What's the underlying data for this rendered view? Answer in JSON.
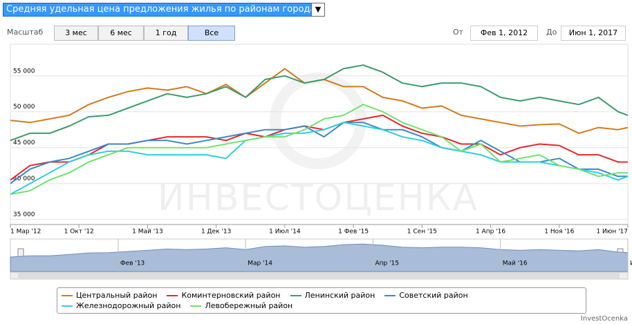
{
  "header": {
    "title": "Средняя удельная цена предложения жилья по районам города"
  },
  "controls": {
    "zoom_label": "Масштаб",
    "buttons": [
      "3 мес",
      "6 мес",
      "1 год",
      "Все"
    ],
    "selected": "Все",
    "from_label": "От",
    "from": "Фев 1, 2012",
    "to_label": "До",
    "to": "Июн 1, 2017"
  },
  "chart_data": {
    "type": "line",
    "watermark": "ИНВЕСТОЦЕНКА",
    "credit": "InvestOcenka",
    "grid": true,
    "x": [
      "2012-03",
      "2012-05",
      "2012-07",
      "2012-09",
      "2012-11",
      "2013-01",
      "2013-03",
      "2013-05",
      "2013-07",
      "2013-09",
      "2013-11",
      "2014-01",
      "2014-03",
      "2014-05",
      "2014-07",
      "2014-09",
      "2014-11",
      "2015-01",
      "2015-03",
      "2015-05",
      "2015-07",
      "2015-09",
      "2015-11",
      "2016-01",
      "2016-03",
      "2016-05",
      "2016-07",
      "2016-09",
      "2016-11",
      "2017-01",
      "2017-03",
      "2017-05",
      "2017-06"
    ],
    "xlim": [
      "2012-03",
      "2017-06"
    ],
    "xticks": [
      {
        "value": "2012-03",
        "label": "1 Мар '12"
      },
      {
        "value": "2012-10",
        "label": "1 Окт '12"
      },
      {
        "value": "2013-05",
        "label": "1 Май '13"
      },
      {
        "value": "2013-12",
        "label": "1 Дек '13"
      },
      {
        "value": "2014-07",
        "label": "1 Июл '14"
      },
      {
        "value": "2015-02",
        "label": "1 Фев '15"
      },
      {
        "value": "2015-09",
        "label": "1 Сен '15"
      },
      {
        "value": "2016-04",
        "label": "1 Апр '16"
      },
      {
        "value": "2016-11",
        "label": "1 Ноя '16"
      },
      {
        "value": "2017-06",
        "label": "1 Июн '17"
      }
    ],
    "ylim": [
      34300,
      59400
    ],
    "yticks": [
      {
        "value": 35000,
        "label": "35 000"
      },
      {
        "value": 40000,
        "label": "40 000"
      },
      {
        "value": 45000,
        "label": "45 000"
      },
      {
        "value": 50000,
        "label": "50 000"
      },
      {
        "value": 55000,
        "label": "55 000"
      }
    ],
    "navigator": {
      "labels": [
        {
          "value": "2013-02",
          "label": "Фев '13"
        },
        {
          "value": "2014-03",
          "label": "Мар '14"
        },
        {
          "value": "2015-04",
          "label": "Апр '15"
        },
        {
          "value": "2016-05",
          "label": "Май '16"
        },
        {
          "value": "2017-06",
          "label": "Ию"
        }
      ]
    },
    "series": [
      {
        "name": "Центральный район",
        "color": "#d07a1d",
        "values": [
          48800,
          48500,
          49000,
          49500,
          51000,
          52000,
          52800,
          53300,
          53000,
          53500,
          52500,
          53800,
          52000,
          54000,
          56000,
          54000,
          54500,
          53500,
          53500,
          52000,
          51500,
          50500,
          50800,
          49500,
          49000,
          48500,
          48000,
          48200,
          48300,
          47000,
          47800,
          47500,
          47800
        ]
      },
      {
        "name": "Коминтерновский район",
        "color": "#e8262b",
        "values": [
          40500,
          42500,
          43000,
          43000,
          44000,
          45500,
          45500,
          46000,
          46500,
          46500,
          46500,
          46000,
          47000,
          46500,
          47500,
          48000,
          47500,
          48500,
          49000,
          49500,
          48000,
          47000,
          46500,
          45500,
          45500,
          44000,
          45000,
          45500,
          45300,
          44000,
          44000,
          43000,
          43000
        ]
      },
      {
        "name": "Ленинский район",
        "color": "#3a9b6a",
        "values": [
          46000,
          47000,
          47000,
          48000,
          49300,
          49500,
          50500,
          51500,
          52500,
          52000,
          52500,
          53500,
          52000,
          54500,
          55000,
          54000,
          54500,
          56000,
          56500,
          55500,
          54000,
          53500,
          54000,
          54000,
          53500,
          52000,
          51500,
          52000,
          51500,
          51000,
          52000,
          50000,
          49500
        ]
      },
      {
        "name": "Советский район",
        "color": "#3b87c8",
        "values": [
          40000,
          42000,
          43000,
          43500,
          44500,
          45500,
          45500,
          46000,
          46000,
          45500,
          46000,
          46500,
          47000,
          47500,
          47500,
          48000,
          46500,
          48500,
          48500,
          47500,
          47500,
          46500,
          45000,
          44500,
          46000,
          44500,
          43000,
          43000,
          43500,
          42000,
          42000,
          41000,
          41000
        ]
      },
      {
        "name": "Железнодорожный район",
        "color": "#2ecfe0",
        "values": [
          38500,
          40000,
          41500,
          43000,
          44000,
          44500,
          44500,
          44000,
          44000,
          44000,
          44000,
          43500,
          46000,
          46500,
          47000,
          47000,
          47500,
          48500,
          48000,
          47500,
          46500,
          46000,
          45000,
          44500,
          44000,
          43000,
          43000,
          43000,
          42500,
          42000,
          41500,
          40500,
          41000
        ]
      },
      {
        "name": "Левобережный район",
        "color": "#6ee36e",
        "values": [
          38500,
          39000,
          40500,
          41500,
          43000,
          44000,
          45000,
          45000,
          45000,
          45000,
          45000,
          45500,
          46000,
          46500,
          46500,
          47500,
          49000,
          49500,
          51000,
          50000,
          48500,
          47500,
          46500,
          44500,
          45500,
          43000,
          43500,
          44000,
          42500,
          42000,
          41000,
          41500,
          41500
        ]
      }
    ]
  }
}
